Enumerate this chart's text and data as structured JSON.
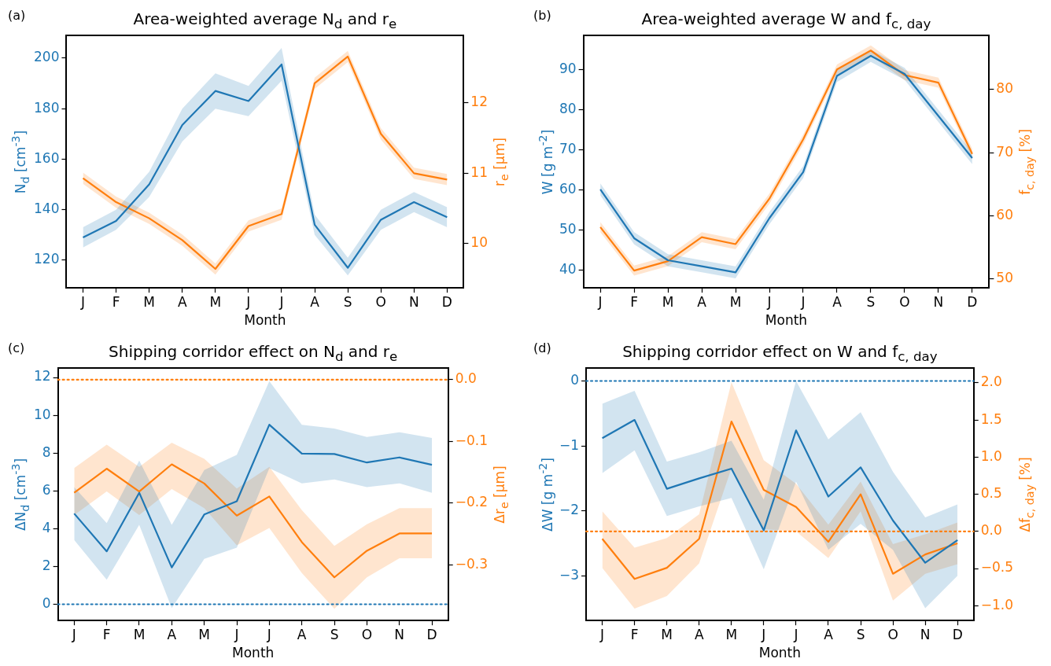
{
  "chart_data": [
    {
      "type": "line",
      "title": "Area-weighted average N$_{d}$ and r$_{e}$",
      "xlabel": "Month",
      "ylabel": "N$_{d}$ [cm$^{-3}$]",
      "y2label": "r$_{e}$ [μm]",
      "annotations": [
        "(a)"
      ],
      "categories": [
        "J",
        "F",
        "M",
        "A",
        "M",
        "J",
        "J",
        "A",
        "S",
        "O",
        "N",
        "D"
      ],
      "series": [
        {
          "color": "#1f77b4",
          "values": [
            129,
            135.5,
            150,
            173.5,
            187,
            183,
            197.5,
            134,
            117,
            136,
            143,
            137
          ],
          "lower": [
            125,
            132,
            145,
            167,
            180,
            177,
            191,
            130,
            114,
            132,
            139,
            133
          ],
          "upper": [
            133,
            140,
            155,
            180,
            194,
            189,
            204,
            138,
            121,
            140,
            147,
            141
          ]
        },
        {
          "color": "#ff7f0e",
          "axis": "y2",
          "values": [
            10.93,
            10.59,
            10.36,
            10.05,
            9.64,
            10.25,
            10.42,
            12.28,
            12.66,
            11.56,
            11.0,
            10.91
          ],
          "lower": [
            10.85,
            10.51,
            10.28,
            9.97,
            9.56,
            10.17,
            10.34,
            12.2,
            12.58,
            11.48,
            10.92,
            10.83
          ],
          "upper": [
            11.01,
            10.67,
            10.44,
            10.13,
            9.72,
            10.33,
            10.5,
            12.36,
            12.74,
            11.64,
            11.08,
            10.99
          ]
        }
      ],
      "ylim": [
        109,
        209
      ],
      "yticks": [
        120,
        140,
        160,
        180,
        200
      ],
      "y2lim": [
        9.37,
        12.96
      ],
      "y2ticks": [
        10,
        11,
        12
      ]
    },
    {
      "type": "line",
      "title": "Area-weighted average W and f$_{c, day}$",
      "xlabel": "Month",
      "ylabel": "W [g m$^{-2}$]",
      "y2label": "f$_{c, day}$ [%]",
      "annotations": [
        "(b)"
      ],
      "categories": [
        "J",
        "F",
        "M",
        "A",
        "M",
        "J",
        "J",
        "A",
        "S",
        "O",
        "N",
        "D"
      ],
      "series": [
        {
          "color": "#1f77b4",
          "values": [
            60.2,
            48,
            42.5,
            41,
            39.5,
            53,
            64.5,
            88.5,
            93.5,
            89,
            78.5,
            68
          ],
          "lower": [
            58.7,
            46.5,
            41,
            39.5,
            38,
            51.5,
            63,
            87,
            92,
            87.5,
            77,
            66.5
          ],
          "upper": [
            61.7,
            49.5,
            44,
            42.5,
            41,
            54.5,
            66,
            90,
            95,
            90.5,
            80,
            69.5
          ]
        },
        {
          "color": "#ff7f0e",
          "axis": "y2",
          "values": [
            58.2,
            51.3,
            52.8,
            56.6,
            55.5,
            62.7,
            72.1,
            83.2,
            86.2,
            82.3,
            81.1,
            69.8
          ],
          "lower": [
            57.4,
            50.5,
            52,
            55.8,
            54.7,
            61.9,
            71.3,
            82.4,
            85.4,
            81.5,
            80.3,
            69
          ],
          "upper": [
            59,
            52.1,
            53.6,
            57.4,
            56.3,
            63.5,
            72.9,
            84,
            87,
            83.1,
            81.9,
            70.6
          ]
        }
      ],
      "ylim": [
        35.6,
        98.6
      ],
      "yticks": [
        40,
        50,
        60,
        70,
        80,
        90
      ],
      "y2lim": [
        48.55,
        88.6
      ],
      "y2ticks": [
        50,
        60,
        70,
        80
      ]
    },
    {
      "type": "line",
      "title": "Shipping corridor effect on N$_{d}$ and r$_{e}$",
      "xlabel": "Month",
      "ylabel": "ΔN$_{d}$ [cm$^{-3}$]",
      "y2label": "Δr$_{e}$ [μm]",
      "annotations": [
        "(c)"
      ],
      "categories": [
        "J",
        "F",
        "M",
        "A",
        "M",
        "J",
        "J",
        "A",
        "S",
        "O",
        "N",
        "D"
      ],
      "series": [
        {
          "color": "#1f77b4",
          "values": [
            4.8,
            2.8,
            5.9,
            1.95,
            4.75,
            5.45,
            9.5,
            7.97,
            7.95,
            7.5,
            7.77,
            7.38
          ],
          "lower": [
            3.4,
            1.3,
            4.2,
            -0.2,
            2.4,
            3.0,
            7.2,
            6.4,
            6.6,
            6.2,
            6.4,
            5.9
          ],
          "upper": [
            6.2,
            4.3,
            7.6,
            4.2,
            7.1,
            7.9,
            11.8,
            9.5,
            9.3,
            8.85,
            9.1,
            8.8
          ]
        },
        {
          "color": "#ff7f0e",
          "axis": "y2",
          "values": [
            -0.183,
            -0.144,
            -0.181,
            -0.137,
            -0.168,
            -0.22,
            -0.189,
            -0.263,
            -0.32,
            -0.277,
            -0.249,
            -0.249
          ],
          "lower": [
            -0.219,
            -0.181,
            -0.219,
            -0.177,
            -0.208,
            -0.268,
            -0.24,
            -0.313,
            -0.371,
            -0.32,
            -0.289,
            -0.289
          ],
          "upper": [
            -0.143,
            -0.105,
            -0.141,
            -0.102,
            -0.128,
            -0.176,
            -0.141,
            -0.211,
            -0.269,
            -0.234,
            -0.208,
            -0.208
          ]
        }
      ],
      "ylim": [
        -0.86,
        12.5
      ],
      "yticks": [
        0,
        2,
        4,
        6,
        8,
        10,
        12
      ],
      "y2lim": [
        -0.39,
        0.019
      ],
      "y2ticks": [
        {
          "value": -0.3,
          "label": "−0.3"
        },
        {
          "value": -0.2,
          "label": "−0.2"
        },
        {
          "value": -0.1,
          "label": "−0.1"
        },
        {
          "value": 0,
          "label": "0.0"
        }
      ],
      "ref_lines": [
        {
          "axis": "y",
          "value": 0,
          "color": "#1f77b4",
          "line_style": "dotted"
        },
        {
          "axis": "y2",
          "value": 0,
          "color": "#ff7f0e",
          "line_style": "dotted"
        }
      ]
    },
    {
      "type": "line",
      "title": "Shipping corridor effect on W and f$_{c, day}$",
      "xlabel": "Month",
      "ylabel": "ΔW [g m$^{-2}$]",
      "y2label": "Δf$_{c, day}$ [%]",
      "annotations": [
        "(d)"
      ],
      "categories": [
        "J",
        "F",
        "M",
        "A",
        "M",
        "J",
        "J",
        "A",
        "S",
        "O",
        "N",
        "D"
      ],
      "series": [
        {
          "color": "#1f77b4",
          "values": [
            -0.88,
            -0.6,
            -1.66,
            -1.5,
            -1.35,
            -2.3,
            -0.76,
            -1.78,
            -1.33,
            -2.15,
            -2.8,
            -2.45
          ],
          "lower": [
            -1.42,
            -1.07,
            -2.08,
            -1.93,
            -1.8,
            -2.9,
            -1.55,
            -2.6,
            -2.2,
            -2.6,
            -3.5,
            -3.0
          ],
          "upper": [
            -0.35,
            -0.15,
            -1.24,
            -1.1,
            -0.92,
            -1.83,
            0.0,
            -0.9,
            -0.48,
            -1.4,
            -2.1,
            -1.9
          ]
        },
        {
          "color": "#ff7f0e",
          "axis": "y2",
          "values": [
            -0.1,
            -0.64,
            -0.49,
            -0.1,
            1.48,
            0.56,
            0.33,
            -0.14,
            0.5,
            -0.57,
            -0.31,
            -0.16
          ],
          "lower": [
            -0.49,
            -1.04,
            -0.87,
            -0.43,
            0.85,
            0.03,
            0.0,
            -0.36,
            0.27,
            -0.93,
            -0.57,
            -0.44
          ],
          "upper": [
            0.27,
            -0.22,
            -0.09,
            0.23,
            2.01,
            0.96,
            0.64,
            0.09,
            0.67,
            -0.17,
            -0.04,
            0.12
          ]
        }
      ],
      "ylim": [
        -3.69,
        0.2
      ],
      "yticks": [
        {
          "value": -3,
          "label": "−3"
        },
        {
          "value": -2,
          "label": "−2"
        },
        {
          "value": -1,
          "label": "−1"
        },
        0
      ],
      "y2lim": [
        -1.2,
        2.2
      ],
      "y2ticks": [
        {
          "value": -1,
          "label": "−1.0"
        },
        {
          "value": -0.5,
          "label": "−0.5"
        },
        {
          "value": 0,
          "label": "0.0"
        },
        {
          "value": 0.5,
          "label": "0.5"
        },
        {
          "value": 1,
          "label": "1.0"
        },
        {
          "value": 1.5,
          "label": "1.5"
        },
        {
          "value": 2,
          "label": "2.0"
        }
      ],
      "ref_lines": [
        {
          "axis": "y",
          "value": 0,
          "color": "#1f77b4",
          "line_style": "dotted"
        },
        {
          "axis": "y2",
          "value": 0,
          "color": "#ff7f0e",
          "line_style": "dotted"
        }
      ]
    }
  ]
}
